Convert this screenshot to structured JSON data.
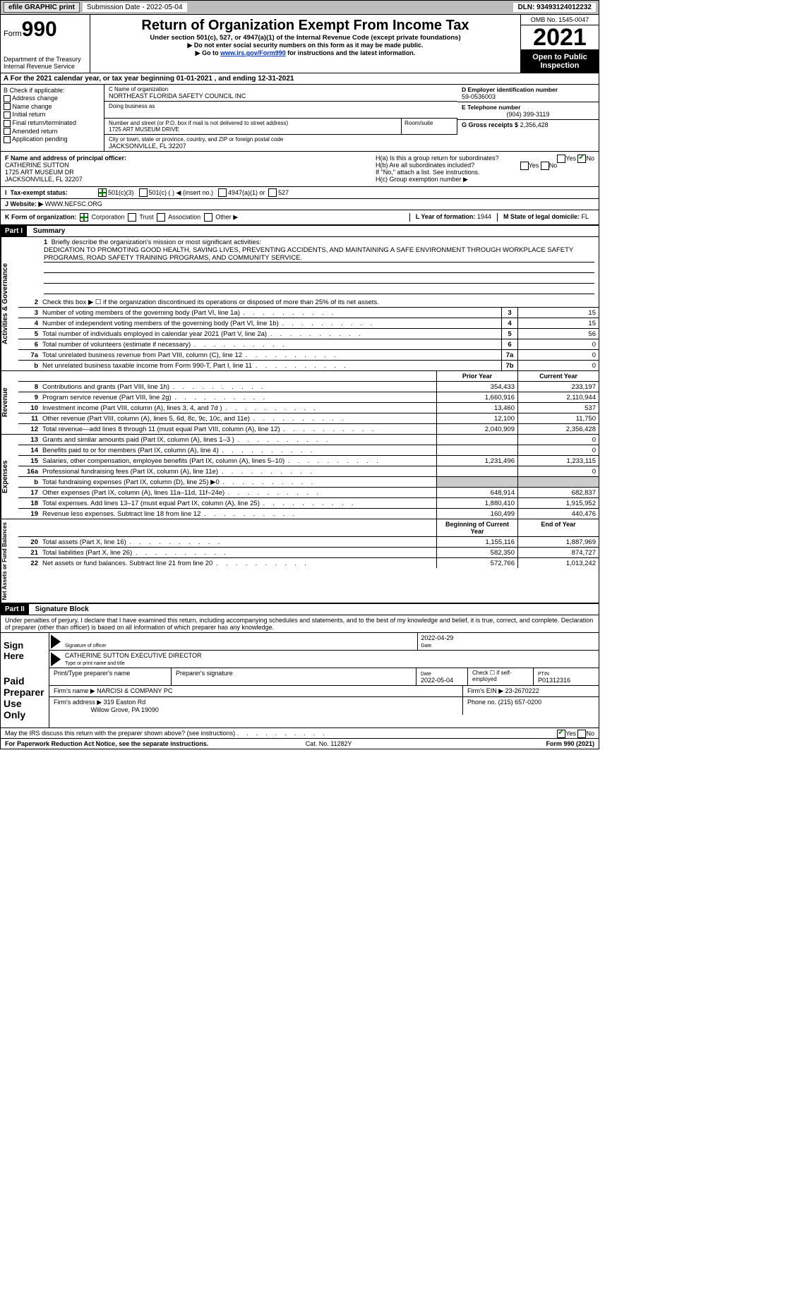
{
  "topbar": {
    "efile": "efile GRAPHIC print",
    "submission": "Submission Date - 2022-05-04",
    "dln": "DLN: 93493124012232"
  },
  "header": {
    "form_label": "Form",
    "form_num": "990",
    "title": "Return of Organization Exempt From Income Tax",
    "subtitle": "Under section 501(c), 527, or 4947(a)(1) of the Internal Revenue Code (except private foundations)",
    "note1": "▶ Do not enter social security numbers on this form as it may be made public.",
    "note2_pre": "▶ Go to ",
    "note2_link": "www.irs.gov/Form990",
    "note2_post": " for instructions and the latest information.",
    "dept": "Department of the Treasury",
    "irs": "Internal Revenue Service",
    "omb": "OMB No. 1545-0047",
    "year": "2021",
    "inspection": "Open to Public Inspection"
  },
  "calendar": "A For the 2021 calendar year, or tax year beginning 01-01-2021    , and ending 12-31-2021",
  "boxB": {
    "title": "B Check if applicable:",
    "items": [
      "Address change",
      "Name change",
      "Initial return",
      "Final return/terminated",
      "Amended return",
      "Application pending"
    ]
  },
  "boxC": {
    "name_lbl": "C Name of organization",
    "name": "NORTHEAST FLORIDA SAFETY COUNCIL INC",
    "dba_lbl": "Doing business as",
    "street_lbl": "Number and street (or P.O. box if mail is not delivered to street address)",
    "street": "1725 ART MUSEUM DRIVE",
    "room_lbl": "Room/suite",
    "city_lbl": "City or town, state or province, country, and ZIP or foreign postal code",
    "city": "JACKSONVILLE, FL  32207"
  },
  "boxD": {
    "ein_lbl": "D Employer identification number",
    "ein": "59-0536003",
    "tel_lbl": "E Telephone number",
    "tel": "(904) 399-3119",
    "gross_lbl": "G Gross receipts $",
    "gross": "2,356,428"
  },
  "boxF": {
    "lbl": "F Name and address of principal officer:",
    "name": "CATHERINE SUTTON",
    "addr1": "1725 ART MUSEUM DR",
    "addr2": "JACKSONVILLE, FL  32207"
  },
  "boxH": {
    "ha": "H(a)  Is this a group return for subordinates?",
    "hb": "H(b)  Are all subordinates included?",
    "hb_note": "If \"No,\" attach a list. See instructions.",
    "hc": "H(c)  Group exemption number ▶"
  },
  "taxstatus": {
    "lbl": "Tax-exempt status:",
    "opts": [
      "501(c)(3)",
      "501(c) (  ) ◀ (insert no.)",
      "4947(a)(1) or",
      "527"
    ]
  },
  "website": {
    "lbl": "J  Website: ▶",
    "val": "WWW.NEFSC.ORG"
  },
  "boxK": {
    "lbl": "K Form of organization:",
    "opts": [
      "Corporation",
      "Trust",
      "Association",
      "Other ▶"
    ]
  },
  "boxL": {
    "lbl": "L Year of formation:",
    "val": "1944"
  },
  "boxM": {
    "lbl": "M State of legal domicile:",
    "val": "FL"
  },
  "part1": {
    "hdr": "Part I",
    "title": "Summary"
  },
  "mission": {
    "lbl": "Briefly describe the organization's mission or most significant activities:",
    "text": "DEDICATION TO PROMOTING GOOD HEALTH, SAVING LIVES, PREVENTING ACCIDENTS, AND MAINTAINING A SAFE ENVIRONMENT THROUGH WORKPLACE SAFETY PROGRAMS, ROAD SAFETY TRAINING PROGRAMS, AND COMMUNITY SERVICE."
  },
  "lines_gov": [
    {
      "n": "2",
      "t": "Check this box ▶ ☐  if the organization discontinued its operations or disposed of more than 25% of its net assets."
    },
    {
      "n": "3",
      "t": "Number of voting members of the governing body (Part VI, line 1a)",
      "box": "3",
      "v": "15"
    },
    {
      "n": "4",
      "t": "Number of independent voting members of the governing body (Part VI, line 1b)",
      "box": "4",
      "v": "15"
    },
    {
      "n": "5",
      "t": "Total number of individuals employed in calendar year 2021 (Part V, line 2a)",
      "box": "5",
      "v": "56"
    },
    {
      "n": "6",
      "t": "Total number of volunteers (estimate if necessary)",
      "box": "6",
      "v": "0"
    },
    {
      "n": "7a",
      "t": "Total unrelated business revenue from Part VIII, column (C), line 12",
      "box": "7a",
      "v": "0"
    },
    {
      "n": "b",
      "t": "Net unrelated business taxable income from Form 990-T, Part I, line 11",
      "box": "7b",
      "v": "0"
    }
  ],
  "col_hdrs": {
    "prior": "Prior Year",
    "current": "Current Year"
  },
  "lines_rev": [
    {
      "n": "8",
      "t": "Contributions and grants (Part VIII, line 1h)",
      "p": "354,433",
      "c": "233,197"
    },
    {
      "n": "9",
      "t": "Program service revenue (Part VIII, line 2g)",
      "p": "1,660,916",
      "c": "2,110,944"
    },
    {
      "n": "10",
      "t": "Investment income (Part VIII, column (A), lines 3, 4, and 7d )",
      "p": "13,460",
      "c": "537"
    },
    {
      "n": "11",
      "t": "Other revenue (Part VIII, column (A), lines 5, 6d, 8c, 9c, 10c, and 11e)",
      "p": "12,100",
      "c": "11,750"
    },
    {
      "n": "12",
      "t": "Total revenue—add lines 8 through 11 (must equal Part VIII, column (A), line 12)",
      "p": "2,040,909",
      "c": "2,356,428"
    }
  ],
  "lines_exp": [
    {
      "n": "13",
      "t": "Grants and similar amounts paid (Part IX, column (A), lines 1–3 )",
      "p": "",
      "c": "0"
    },
    {
      "n": "14",
      "t": "Benefits paid to or for members (Part IX, column (A), line 4)",
      "p": "",
      "c": "0"
    },
    {
      "n": "15",
      "t": "Salaries, other compensation, employee benefits (Part IX, column (A), lines 5–10)",
      "p": "1,231,496",
      "c": "1,233,115"
    },
    {
      "n": "16a",
      "t": "Professional fundraising fees (Part IX, column (A), line 11e)",
      "p": "",
      "c": "0"
    },
    {
      "n": "b",
      "t": "Total fundraising expenses (Part IX, column (D), line 25) ▶0",
      "p": "grey",
      "c": "grey"
    },
    {
      "n": "17",
      "t": "Other expenses (Part IX, column (A), lines 11a–11d, 11f–24e)",
      "p": "648,914",
      "c": "682,837"
    },
    {
      "n": "18",
      "t": "Total expenses. Add lines 13–17 (must equal Part IX, column (A), line 25)",
      "p": "1,880,410",
      "c": "1,915,952"
    },
    {
      "n": "19",
      "t": "Revenue less expenses. Subtract line 18 from line 12",
      "p": "160,499",
      "c": "440,476"
    }
  ],
  "col_hdrs2": {
    "begin": "Beginning of Current Year",
    "end": "End of Year"
  },
  "lines_net": [
    {
      "n": "20",
      "t": "Total assets (Part X, line 16)",
      "p": "1,155,116",
      "c": "1,887,969"
    },
    {
      "n": "21",
      "t": "Total liabilities (Part X, line 26)",
      "p": "582,350",
      "c": "874,727"
    },
    {
      "n": "22",
      "t": "Net assets or fund balances. Subtract line 21 from line 20",
      "p": "572,766",
      "c": "1,013,242"
    }
  ],
  "part2": {
    "hdr": "Part II",
    "title": "Signature Block"
  },
  "penalty": "Under penalties of perjury, I declare that I have examined this return, including accompanying schedules and statements, and to the best of my knowledge and belief, it is true, correct, and complete. Declaration of preparer (other than officer) is based on all information of which preparer has any knowledge.",
  "sign": {
    "here": "Sign Here",
    "sig_lbl": "Signature of officer",
    "date": "2022-04-29",
    "date_lbl": "Date",
    "name": "CATHERINE SUTTON  EXECUTIVE DIRECTOR",
    "name_lbl": "Type or print name and title"
  },
  "paid": {
    "here": "Paid Preparer Use Only",
    "h1": "Print/Type preparer's name",
    "h2": "Preparer's signature",
    "h3": "Date",
    "h3v": "2022-05-04",
    "h4": "Check ☐ if self-employed",
    "h5": "PTIN",
    "h5v": "P01312316",
    "firm_lbl": "Firm's name    ▶",
    "firm": "NARCISI & COMPANY PC",
    "ein_lbl": "Firm's EIN ▶",
    "ein": "23-2670222",
    "addr_lbl": "Firm's address ▶",
    "addr1": "319 Easton Rd",
    "addr2": "Willow Grove, PA  19090",
    "ph_lbl": "Phone no.",
    "ph": "(215) 657-0200"
  },
  "discuss": "May the IRS discuss this return with the preparer shown above? (see instructions)",
  "footer": {
    "l": "For Paperwork Reduction Act Notice, see the separate instructions.",
    "m": "Cat. No. 11282Y",
    "r": "Form 990 (2021)"
  },
  "vtabs": {
    "gov": "Activities & Governance",
    "rev": "Revenue",
    "exp": "Expenses",
    "net": "Net Assets or Fund Balances"
  }
}
